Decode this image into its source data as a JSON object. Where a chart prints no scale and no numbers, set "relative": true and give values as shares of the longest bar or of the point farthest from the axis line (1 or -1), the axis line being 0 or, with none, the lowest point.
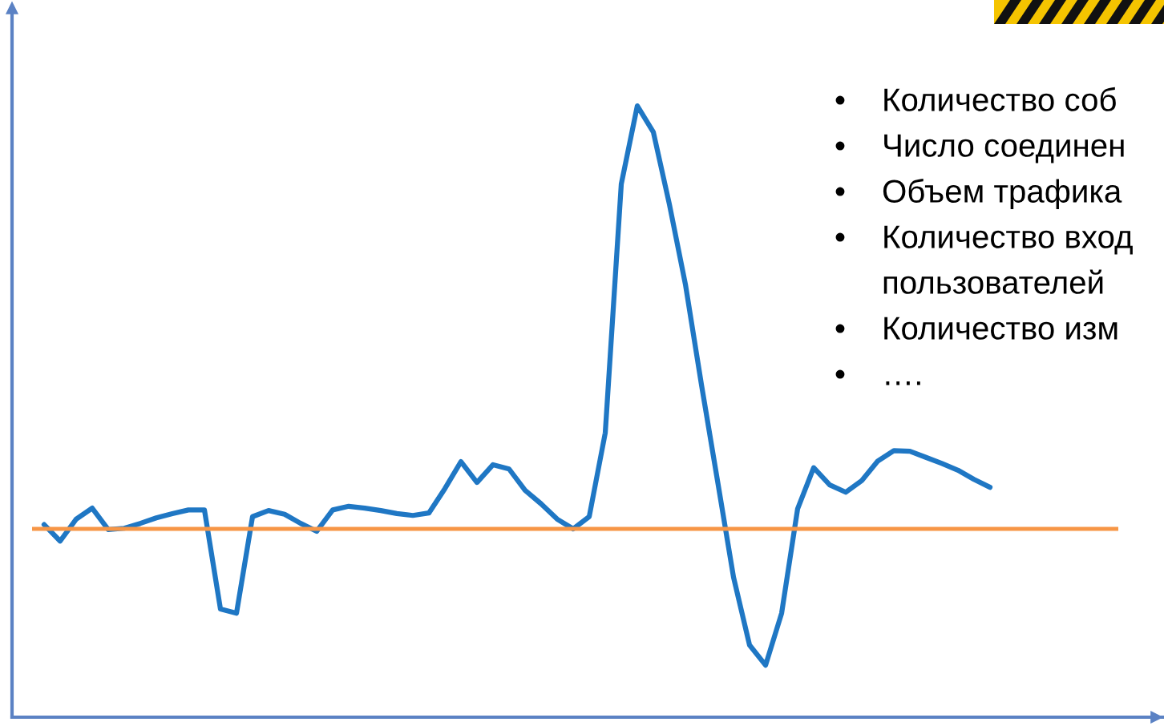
{
  "chart_data": {
    "type": "line",
    "relative": true,
    "categories": [
      null,
      null,
      null,
      null,
      null,
      null,
      null,
      null,
      null,
      null,
      null,
      null,
      null,
      null,
      null,
      null,
      null,
      null,
      null,
      null,
      null,
      null,
      null,
      null,
      null,
      null,
      null,
      null,
      null,
      null,
      null,
      null,
      null,
      null,
      null,
      null,
      null,
      null,
      null,
      null,
      null,
      null,
      null,
      null,
      null,
      null,
      null,
      null,
      null,
      null,
      null,
      null,
      null,
      null,
      null,
      null,
      null,
      null,
      null,
      null
    ],
    "series": [
      {
        "color": "#1f77c4",
        "values": [
          0.315,
          0.288,
          0.324,
          0.342,
          0.307,
          0.309,
          0.317,
          0.326,
          0.333,
          0.339,
          0.339,
          0.177,
          0.17,
          0.328,
          0.338,
          0.332,
          0.317,
          0.304,
          0.339,
          0.345,
          0.342,
          0.338,
          0.333,
          0.33,
          0.334,
          0.374,
          0.418,
          0.384,
          0.413,
          0.406,
          0.371,
          0.349,
          0.324,
          0.308,
          0.328,
          0.465,
          0.872,
          1,
          0.957,
          0.839,
          0.708,
          0.544,
          0.387,
          0.229,
          0.118,
          0.085,
          0.17,
          0.341,
          0.408,
          0.38,
          0.368,
          0.387,
          0.419,
          0.436,
          0.435,
          0.425,
          0.415,
          0.404,
          0.389,
          0.376
        ]
      }
    ],
    "ref_lines": [
      {
        "axis": "y",
        "value": 0.308,
        "color": "#f79646",
        "line_style": "solid"
      }
    ],
    "annotations": [
      "• Количество соб",
      "• Число соединен",
      "• Объем трафика",
      "• Количество вход\nпользователей",
      "• Количество изм",
      "• …."
    ],
    "marker": "none",
    "line_style": "solid",
    "tick_labels": false
  }
}
